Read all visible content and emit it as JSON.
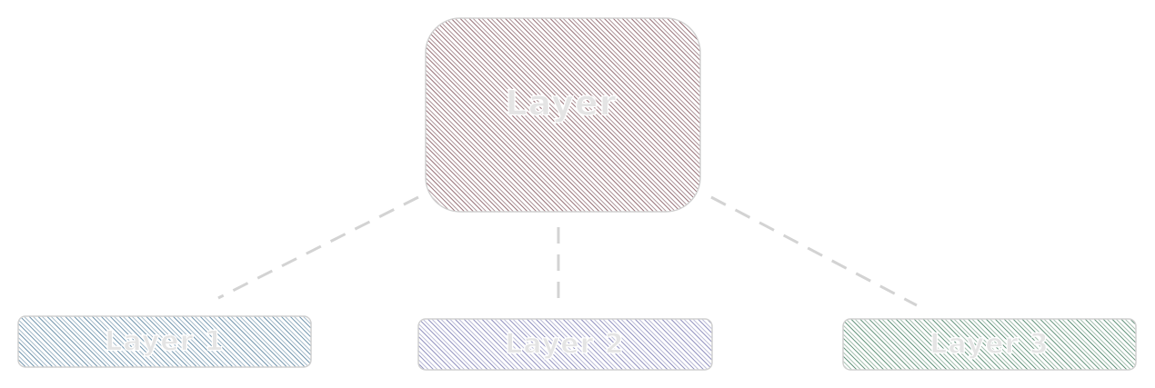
{
  "diagram": {
    "root": {
      "label": "Layer",
      "color": "#7a4a52"
    },
    "children": [
      {
        "label": "Layer 1",
        "color": "#3f6f8f"
      },
      {
        "label": "Layer 2",
        "color": "#6a6aa8"
      },
      {
        "label": "Layer 3",
        "color": "#2f6f4f"
      }
    ],
    "connector_color": "#d3d3d3",
    "connector_style": "dashed"
  }
}
